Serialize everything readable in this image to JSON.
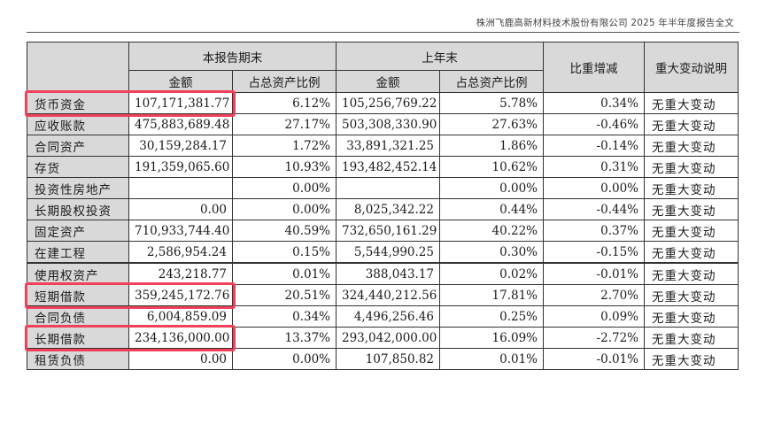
{
  "header": {
    "text": "株洲飞鹿高新材料技术股份有限公司 2025 年半年度报告全文"
  },
  "table": {
    "group_headers": {
      "current": "本报告期末",
      "previous": "上年末",
      "change": "比重增减",
      "note": "重大变动说明"
    },
    "sub_headers": {
      "amount": "金额",
      "ratio": "占总资产比例"
    },
    "rows": [
      {
        "label": "货币资金",
        "cur_amount": "107,171,381.77",
        "cur_ratio": "6.12%",
        "prev_amount": "105,256,769.22",
        "prev_ratio": "5.78%",
        "change": "0.34%",
        "note": "无重大变动"
      },
      {
        "label": "应收账款",
        "cur_amount": "475,883,689.48",
        "cur_ratio": "27.17%",
        "prev_amount": "503,308,330.90",
        "prev_ratio": "27.63%",
        "change": "-0.46%",
        "note": "无重大变动"
      },
      {
        "label": "合同资产",
        "cur_amount": "30,159,284.17",
        "cur_ratio": "1.72%",
        "prev_amount": "33,891,321.25",
        "prev_ratio": "1.86%",
        "change": "-0.14%",
        "note": "无重大变动"
      },
      {
        "label": "存货",
        "cur_amount": "191,359,065.60",
        "cur_ratio": "10.93%",
        "prev_amount": "193,482,452.14",
        "prev_ratio": "10.62%",
        "change": "0.31%",
        "note": "无重大变动"
      },
      {
        "label": "投资性房地产",
        "cur_amount": "",
        "cur_ratio": "0.00%",
        "prev_amount": "",
        "prev_ratio": "0.00%",
        "change": "0.00%",
        "note": "无重大变动"
      },
      {
        "label": "长期股权投资",
        "cur_amount": "0.00",
        "cur_ratio": "0.00%",
        "prev_amount": "8,025,342.22",
        "prev_ratio": "0.44%",
        "change": "-0.44%",
        "note": "无重大变动"
      },
      {
        "label": "固定资产",
        "cur_amount": "710,933,744.40",
        "cur_ratio": "40.59%",
        "prev_amount": "732,650,161.29",
        "prev_ratio": "40.22%",
        "change": "0.37%",
        "note": "无重大变动"
      },
      {
        "label": "在建工程",
        "cur_amount": "2,586,954.24",
        "cur_ratio": "0.15%",
        "prev_amount": "5,544,990.25",
        "prev_ratio": "0.30%",
        "change": "-0.15%",
        "note": "无重大变动"
      },
      {
        "label": "使用权资产",
        "cur_amount": "243,218.77",
        "cur_ratio": "0.01%",
        "prev_amount": "388,043.17",
        "prev_ratio": "0.02%",
        "change": "-0.01%",
        "note": "无重大变动"
      },
      {
        "label": "短期借款",
        "cur_amount": "359,245,172.76",
        "cur_ratio": "20.51%",
        "prev_amount": "324,440,212.56",
        "prev_ratio": "17.81%",
        "change": "2.70%",
        "note": "无重大变动"
      },
      {
        "label": "合同负债",
        "cur_amount": "6,004,859.09",
        "cur_ratio": "0.34%",
        "prev_amount": "4,496,256.46",
        "prev_ratio": "0.25%",
        "change": "0.09%",
        "note": "无重大变动"
      },
      {
        "label": "长期借款",
        "cur_amount": "234,136,000.00",
        "cur_ratio": "13.37%",
        "prev_amount": "293,042,000.00",
        "prev_ratio": "16.09%",
        "change": "-2.72%",
        "note": "无重大变动"
      },
      {
        "label": "租赁负债",
        "cur_amount": "0.00",
        "cur_ratio": "0.00%",
        "prev_amount": "107,850.82",
        "prev_ratio": "0.01%",
        "change": "-0.01%",
        "note": "无重大变动"
      }
    ]
  },
  "highlight_color": "#f0405a"
}
